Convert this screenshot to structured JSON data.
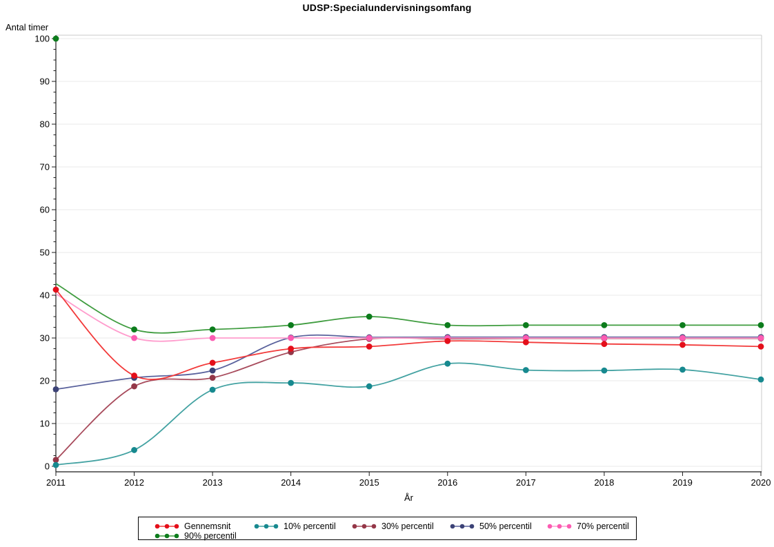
{
  "chart_data": {
    "type": "line",
    "title": "UDSP:Specialundervisningsomfang",
    "xlabel": "År",
    "ylabel": "Antal timer",
    "x": [
      2011,
      2012,
      2013,
      2014,
      2015,
      2016,
      2017,
      2018,
      2019,
      2020
    ],
    "ylim": [
      0,
      100
    ],
    "yticks": [
      0,
      10,
      20,
      30,
      40,
      50,
      60,
      70,
      80,
      90,
      100
    ],
    "yminor_step": 2.5,
    "grid": "horizontal",
    "legend_position": "bottom",
    "legend_rows": [
      [
        "Gennemsnit",
        "10% percentil",
        "30% percentil",
        "50% percentil",
        "70% percentil"
      ],
      [
        "90% percentil"
      ]
    ],
    "series": [
      {
        "name": "Gennemsnit",
        "line_color": "#f23a3a",
        "marker_color": "#e40f1a",
        "values": [
          41.3,
          21.2,
          24.2,
          27.5,
          28.0,
          29.3,
          29.0,
          28.6,
          28.4,
          28.0
        ]
      },
      {
        "name": "10% percentil",
        "line_color": "#43a2a2",
        "marker_color": "#17898f",
        "values": [
          0.3,
          3.8,
          17.9,
          19.5,
          18.7,
          24.0,
          22.5,
          22.4,
          22.6,
          20.3
        ]
      },
      {
        "name": "30% percentil",
        "line_color": "#a84b5c",
        "marker_color": "#943748",
        "values": [
          1.5,
          18.7,
          20.7,
          26.7,
          29.8,
          29.8,
          29.9,
          29.9,
          29.9,
          29.9
        ]
      },
      {
        "name": "50% percentil",
        "line_color": "#59619c",
        "marker_color": "#3c4377",
        "values": [
          18.0,
          20.7,
          22.4,
          30.1,
          30.15,
          30.2,
          30.2,
          30.2,
          30.2,
          30.2
        ]
      },
      {
        "name": "70% percentil",
        "line_color": "#ff9ccd",
        "marker_color": "#fc5cb2",
        "values": [
          40.3,
          30,
          30,
          30,
          30,
          30,
          30,
          30,
          30,
          30
        ],
        "skip_first_marker": true
      },
      {
        "name": "90% percentil",
        "line_color": "#3f9c3f",
        "marker_color": "#0c7c1c",
        "values": [
          100,
          32,
          32,
          33,
          35,
          33,
          33,
          33,
          33,
          33
        ],
        "line_first_value": 42.7
      }
    ],
    "draw_order": [
      3,
      2,
      4,
      1,
      5,
      0
    ]
  }
}
